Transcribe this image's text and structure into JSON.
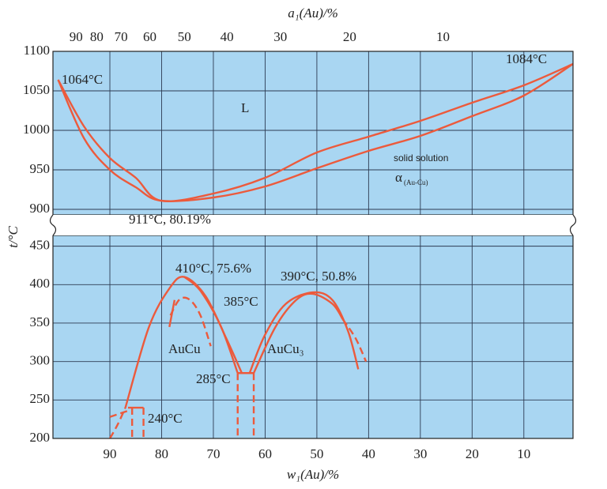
{
  "chart_data": [
    {
      "type": "line",
      "xlim": [
        101,
        0.5
      ],
      "ylim": [
        893,
        1100
      ],
      "yticks": [
        900,
        950,
        1000,
        1050,
        1100
      ],
      "xticks": [
        90,
        80,
        70,
        60,
        50,
        40,
        30,
        20,
        10
      ],
      "grid": true,
      "top_axis_label": "a₁(Au)/%",
      "top_ticks": [
        90,
        80,
        70,
        60,
        50,
        40,
        30,
        20,
        10
      ],
      "annotations": [
        "1064°C",
        "1084°C",
        "L",
        "solid solution",
        "911°C, 80.19%"
      ],
      "alpha_label": {
        "symbol": "α",
        "subscript": "(Au-Cu)"
      },
      "series": [
        {
          "color": "#ec5a3c",
          "dash": false,
          "x": [
            100,
            95,
            90,
            85,
            80.19,
            70,
            60,
            50,
            40,
            30,
            20,
            10,
            0.5
          ],
          "values": [
            1064,
            1005,
            965,
            940,
            911,
            920,
            940,
            972,
            992,
            1012,
            1035,
            1057,
            1084
          ]
        },
        {
          "color": "#ec5a3c",
          "dash": false,
          "x": [
            100,
            95,
            90,
            85,
            80.19,
            70,
            60,
            50,
            40,
            30,
            20,
            10,
            0.5
          ],
          "values": [
            1064,
            990,
            950,
            928,
            911,
            915,
            929,
            952,
            974,
            993,
            1018,
            1044,
            1084
          ]
        }
      ]
    },
    {
      "type": "line",
      "xlim": [
        101,
        0.5
      ],
      "ylim": [
        200,
        464
      ],
      "yticks": [
        200,
        250,
        300,
        350,
        400,
        450
      ],
      "xticks": [
        90,
        80,
        70,
        60,
        50,
        40,
        30,
        20,
        10
      ],
      "grid": true,
      "x_label": "w₁(Au)/%",
      "y_label": "t/°C",
      "annotations": [
        "410°C, 75.6%",
        "385°C",
        "390°C, 50.8%",
        "AuCu",
        "AuCu₃",
        "285°C",
        "240°C"
      ],
      "series": [
        {
          "color": "#ec5a3c",
          "dash": false,
          "x": [
            87,
            82.5,
            78.5,
            75.6,
            71.5,
            67.5,
            64.5
          ],
          "values": [
            240,
            344,
            395,
            410,
            385,
            330,
            285
          ]
        },
        {
          "color": "#ec5a3c",
          "dash": false,
          "x": [
            75.6,
            72.5,
            68.5,
            65.3
          ],
          "values": [
            410,
            392,
            345,
            285
          ]
        },
        {
          "color": "#ec5a3c",
          "dash": false,
          "x": [
            78.5,
            77.5
          ],
          "values": [
            345,
            380
          ]
        },
        {
          "color": "#ec5a3c",
          "dash": true,
          "x": [
            78.3,
            76.5,
            74.5,
            72.5,
            70.5
          ],
          "values": [
            360,
            381,
            380,
            360,
            320
          ]
        },
        {
          "color": "#ec5a3c",
          "dash": false,
          "x": [
            65.3,
            62.2
          ],
          "values": [
            285,
            285
          ]
        },
        {
          "color": "#ec5a3c",
          "dash": true,
          "x": [
            65.3,
            65.3
          ],
          "values": [
            285,
            200
          ]
        },
        {
          "color": "#ec5a3c",
          "dash": true,
          "x": [
            62.2,
            62.2
          ],
          "values": [
            285,
            200
          ]
        },
        {
          "color": "#ec5a3c",
          "dash": false,
          "x": [
            63,
            60,
            56,
            50.8,
            47,
            44,
            42
          ],
          "values": [
            285,
            335,
            375,
            390,
            380,
            340,
            290
          ]
        },
        {
          "color": "#ec5a3c",
          "dash": false,
          "x": [
            62.2,
            58,
            54,
            50.8,
            47,
            45
          ],
          "values": [
            285,
            345,
            380,
            388,
            375,
            355
          ]
        },
        {
          "color": "#ec5a3c",
          "dash": true,
          "x": [
            45,
            42.5,
            40.5
          ],
          "values": [
            355,
            330,
            300
          ]
        },
        {
          "color": "#ec5a3c",
          "dash": false,
          "x": [
            86.5,
            83.5
          ],
          "values": [
            240,
            240
          ]
        },
        {
          "color": "#ec5a3c",
          "dash": true,
          "x": [
            90,
            86.5
          ],
          "values": [
            228,
            236
          ]
        },
        {
          "color": "#ec5a3c",
          "dash": true,
          "x": [
            90,
            88.5,
            87
          ],
          "values": [
            200,
            218,
            240
          ]
        },
        {
          "color": "#ec5a3c",
          "dash": true,
          "x": [
            85.7,
            85.7
          ],
          "values": [
            240,
            200
          ]
        },
        {
          "color": "#ec5a3c",
          "dash": true,
          "x": [
            83.5,
            83.5
          ],
          "values": [
            240,
            200
          ]
        }
      ]
    }
  ]
}
